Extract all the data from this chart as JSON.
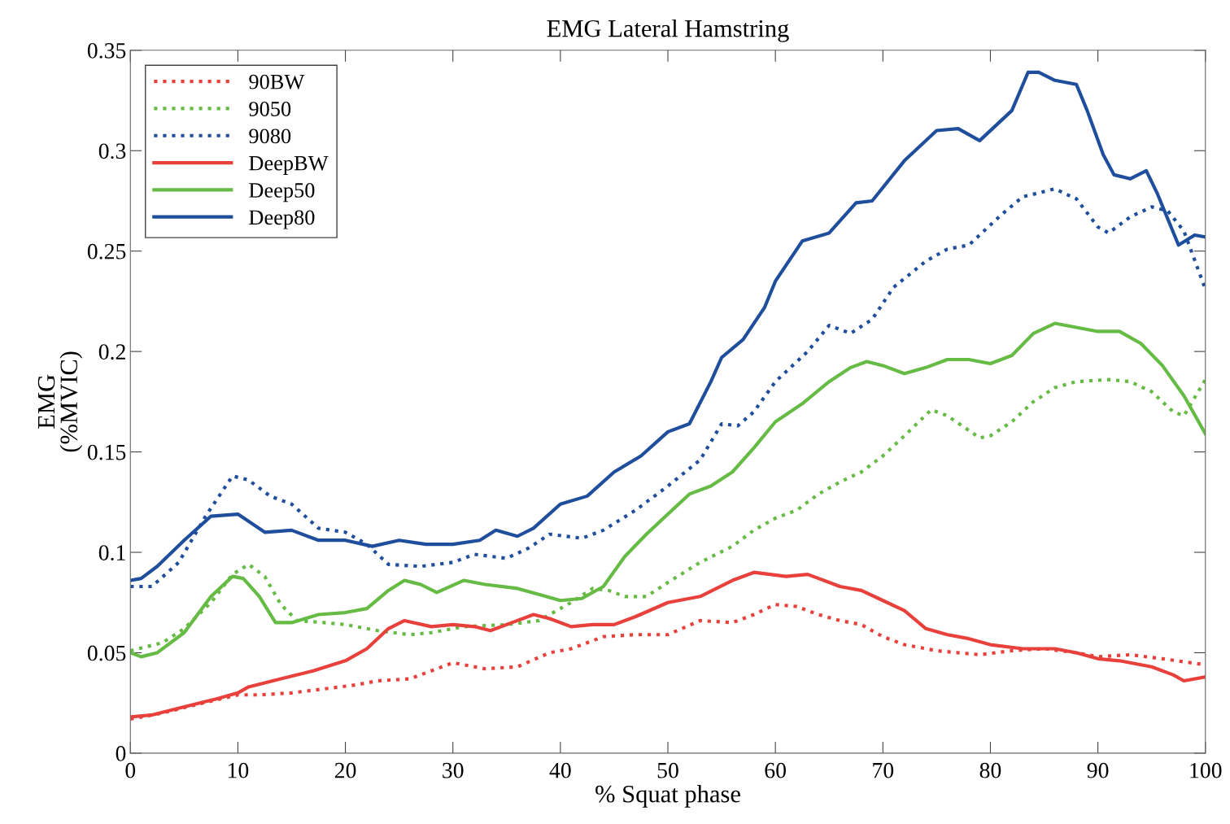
{
  "chart_data": {
    "type": "line",
    "title": "EMG Lateral Hamstring",
    "xlabel": "% Squat phase",
    "ylabel": "EMG\n(%MVIC)",
    "xlim": [
      0,
      100
    ],
    "xticks": [
      0,
      10,
      20,
      30,
      40,
      50,
      60,
      70,
      80,
      90,
      100
    ],
    "ylim": [
      0,
      0.35
    ],
    "yticks": [
      0,
      0.05,
      0.1,
      0.15,
      0.2,
      0.25,
      0.3,
      0.35
    ],
    "grid": false,
    "legend": "top left",
    "marker": "none",
    "series": [
      {
        "name": "90BW",
        "color": "#e8413c",
        "line_style": "dotted",
        "x": [
          0,
          3,
          6,
          10,
          12,
          15,
          18,
          21,
          23,
          26,
          30,
          33,
          36,
          39,
          41,
          44,
          47,
          50,
          53,
          56,
          58,
          60,
          62,
          64,
          66,
          68,
          70,
          72,
          75,
          79,
          82,
          85,
          88,
          90,
          93,
          96,
          100
        ],
        "values": [
          0.017,
          0.02,
          0.024,
          0.029,
          0.029,
          0.03,
          0.032,
          0.034,
          0.036,
          0.037,
          0.045,
          0.042,
          0.043,
          0.05,
          0.052,
          0.058,
          0.059,
          0.059,
          0.066,
          0.065,
          0.069,
          0.074,
          0.073,
          0.069,
          0.066,
          0.064,
          0.058,
          0.054,
          0.051,
          0.049,
          0.051,
          0.052,
          0.05,
          0.048,
          0.049,
          0.047,
          0.044
        ]
      },
      {
        "name": "9050",
        "color": "#66bb44",
        "line_style": "dotted",
        "x": [
          0,
          3,
          5,
          7.5,
          9.5,
          11,
          12.5,
          14,
          15.5,
          18,
          20,
          23,
          26,
          28,
          31,
          35,
          38,
          41,
          43,
          44.5,
          46,
          48,
          50,
          53,
          56,
          58,
          60,
          62,
          64,
          66,
          68,
          70,
          72,
          74.5,
          76,
          79,
          80,
          82,
          84,
          86,
          88,
          91,
          93,
          95,
          97,
          98,
          100
        ],
        "values": [
          0.051,
          0.055,
          0.062,
          0.075,
          0.089,
          0.094,
          0.088,
          0.074,
          0.066,
          0.065,
          0.064,
          0.061,
          0.059,
          0.06,
          0.063,
          0.064,
          0.066,
          0.075,
          0.082,
          0.081,
          0.078,
          0.078,
          0.085,
          0.095,
          0.103,
          0.111,
          0.117,
          0.121,
          0.129,
          0.135,
          0.14,
          0.148,
          0.158,
          0.171,
          0.168,
          0.157,
          0.158,
          0.165,
          0.175,
          0.182,
          0.185,
          0.186,
          0.185,
          0.18,
          0.17,
          0.168,
          0.186
        ]
      },
      {
        "name": "9080",
        "color": "#1f4e9c",
        "line_style": "dotted",
        "x": [
          0,
          2,
          4.5,
          7,
          9.5,
          11,
          13,
          15,
          17.5,
          20,
          22,
          24,
          27,
          30,
          32,
          35,
          37,
          39,
          42,
          44,
          47,
          50,
          53,
          55,
          56.5,
          58,
          60,
          63,
          65,
          67,
          69,
          71,
          74,
          76,
          78,
          81,
          83,
          86,
          88,
          90,
          91,
          93,
          95,
          96.5,
          98,
          100
        ],
        "values": [
          0.083,
          0.083,
          0.095,
          0.118,
          0.138,
          0.136,
          0.128,
          0.124,
          0.112,
          0.11,
          0.104,
          0.094,
          0.093,
          0.095,
          0.099,
          0.097,
          0.102,
          0.109,
          0.107,
          0.111,
          0.121,
          0.133,
          0.146,
          0.164,
          0.163,
          0.17,
          0.185,
          0.2,
          0.213,
          0.209,
          0.216,
          0.232,
          0.245,
          0.251,
          0.253,
          0.268,
          0.277,
          0.281,
          0.276,
          0.262,
          0.259,
          0.267,
          0.272,
          0.27,
          0.26,
          0.231
        ]
      },
      {
        "name": "DeepBW",
        "color": "#e8413c",
        "line_style": "solid",
        "x": [
          0,
          2,
          5,
          8,
          10,
          11,
          14,
          17,
          20,
          22,
          24,
          25.5,
          28,
          30,
          32,
          33.5,
          35.5,
          37.5,
          39,
          41,
          43,
          45,
          47,
          50,
          53,
          56,
          58,
          61,
          63,
          66,
          68,
          70,
          72,
          74,
          76,
          78,
          80,
          83,
          86,
          88,
          90,
          92,
          95,
          97,
          98,
          100
        ],
        "values": [
          0.018,
          0.019,
          0.023,
          0.027,
          0.03,
          0.033,
          0.037,
          0.041,
          0.046,
          0.052,
          0.062,
          0.066,
          0.063,
          0.064,
          0.063,
          0.061,
          0.065,
          0.069,
          0.067,
          0.063,
          0.064,
          0.064,
          0.068,
          0.075,
          0.078,
          0.086,
          0.09,
          0.088,
          0.089,
          0.083,
          0.081,
          0.076,
          0.071,
          0.062,
          0.059,
          0.057,
          0.054,
          0.052,
          0.052,
          0.05,
          0.047,
          0.046,
          0.043,
          0.039,
          0.036,
          0.038
        ]
      },
      {
        "name": "Deep50",
        "color": "#66bb44",
        "line_style": "solid",
        "x": [
          0,
          1,
          2.5,
          5,
          7.5,
          9.5,
          10.5,
          12,
          13.5,
          15,
          17.5,
          20,
          22,
          24,
          25.5,
          27,
          28.5,
          31,
          33,
          36,
          38,
          40,
          42,
          44,
          46,
          48,
          50,
          52,
          54,
          56,
          58,
          60,
          62.5,
          65,
          67,
          68.5,
          70,
          72,
          74,
          76,
          78,
          80,
          82,
          84,
          86,
          88,
          90,
          92,
          94,
          96,
          98,
          100
        ],
        "values": [
          0.05,
          0.048,
          0.05,
          0.06,
          0.078,
          0.088,
          0.087,
          0.078,
          0.065,
          0.065,
          0.069,
          0.07,
          0.072,
          0.081,
          0.086,
          0.084,
          0.08,
          0.086,
          0.084,
          0.082,
          0.079,
          0.076,
          0.077,
          0.083,
          0.098,
          0.109,
          0.119,
          0.129,
          0.133,
          0.14,
          0.152,
          0.165,
          0.174,
          0.185,
          0.192,
          0.195,
          0.193,
          0.189,
          0.192,
          0.196,
          0.196,
          0.194,
          0.198,
          0.209,
          0.214,
          0.212,
          0.21,
          0.21,
          0.204,
          0.193,
          0.178,
          0.159
        ]
      },
      {
        "name": "Deep80",
        "color": "#1f4e9c",
        "line_style": "solid",
        "x": [
          0,
          1,
          2.5,
          5,
          7.5,
          10,
          12.5,
          15,
          17.5,
          20,
          22.5,
          25,
          27.5,
          30,
          32.5,
          34,
          36,
          37.5,
          40,
          42.5,
          45,
          47.5,
          50,
          52,
          54,
          55,
          57,
          59,
          60,
          62.5,
          65,
          67.5,
          69,
          72,
          75,
          77,
          79,
          82,
          83.5,
          84.5,
          86,
          88,
          89,
          90.5,
          91.5,
          93,
          94.5,
          95.5,
          97.5,
          99,
          100
        ],
        "values": [
          0.086,
          0.087,
          0.093,
          0.106,
          0.118,
          0.119,
          0.11,
          0.111,
          0.106,
          0.106,
          0.103,
          0.106,
          0.104,
          0.104,
          0.106,
          0.111,
          0.108,
          0.112,
          0.124,
          0.128,
          0.14,
          0.148,
          0.16,
          0.164,
          0.185,
          0.197,
          0.206,
          0.222,
          0.235,
          0.255,
          0.259,
          0.274,
          0.275,
          0.295,
          0.31,
          0.311,
          0.305,
          0.32,
          0.339,
          0.339,
          0.335,
          0.333,
          0.32,
          0.298,
          0.288,
          0.286,
          0.29,
          0.279,
          0.253,
          0.258,
          0.257
        ]
      }
    ]
  }
}
